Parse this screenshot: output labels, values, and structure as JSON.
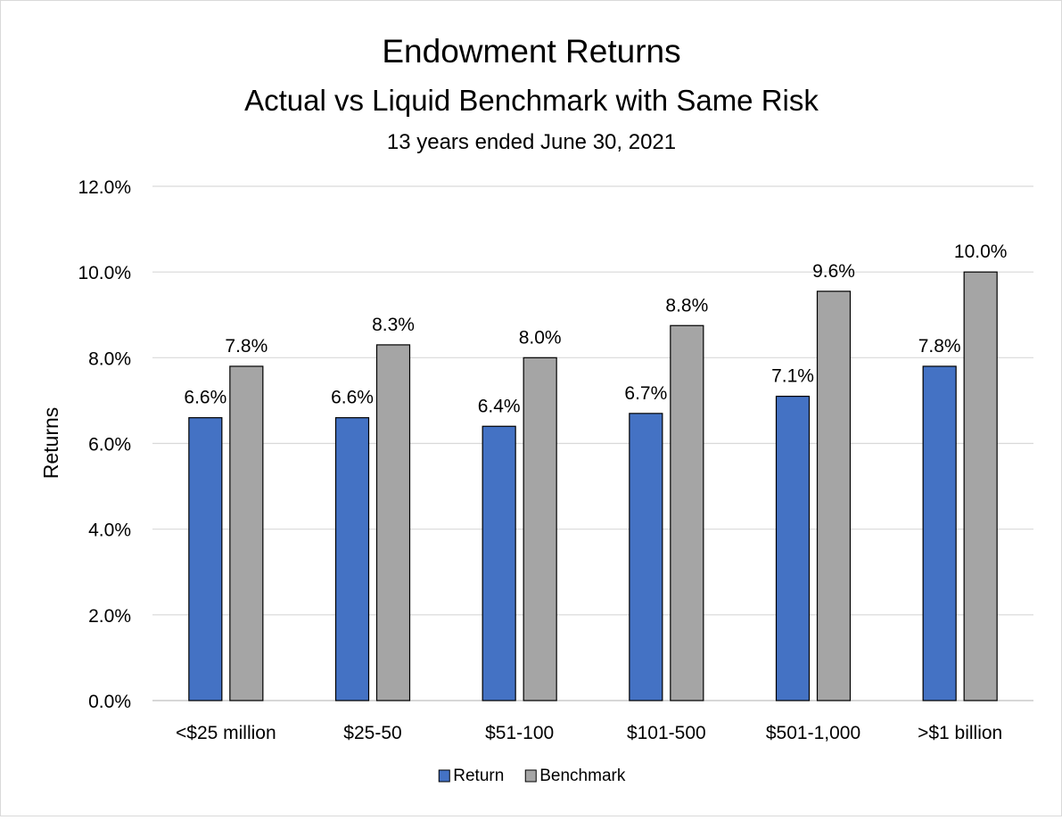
{
  "chart_data": {
    "type": "bar",
    "title": "Endowment Returns",
    "subtitle": "Actual vs Liquid Benchmark with Same Risk",
    "subtitle2": "13 years ended June 30, 2021",
    "xlabel": "",
    "ylabel": "Returns",
    "ylim": [
      0,
      12
    ],
    "ytick_step": 2,
    "y_tick_format": "percent_1dp",
    "grid": true,
    "legend_position": "bottom-center",
    "categories": [
      "<$25 million",
      "$25-50",
      "$51-100",
      "$101-500",
      "$501-1,000",
      ">$1 billion"
    ],
    "series": [
      {
        "name": "Return",
        "color": "#4472c4",
        "values": [
          6.6,
          6.6,
          6.4,
          6.7,
          7.1,
          7.8
        ],
        "labels": [
          "6.6%",
          "6.6%",
          "6.4%",
          "6.7%",
          "7.1%",
          "7.8%"
        ]
      },
      {
        "name": "Benchmark",
        "color": "#a5a5a5",
        "values": [
          7.8,
          8.3,
          8.0,
          8.75,
          9.55,
          10.0
        ],
        "labels": [
          "7.8%",
          "8.3%",
          "8.0%",
          "8.8%",
          "9.6%",
          "10.0%"
        ]
      }
    ]
  }
}
